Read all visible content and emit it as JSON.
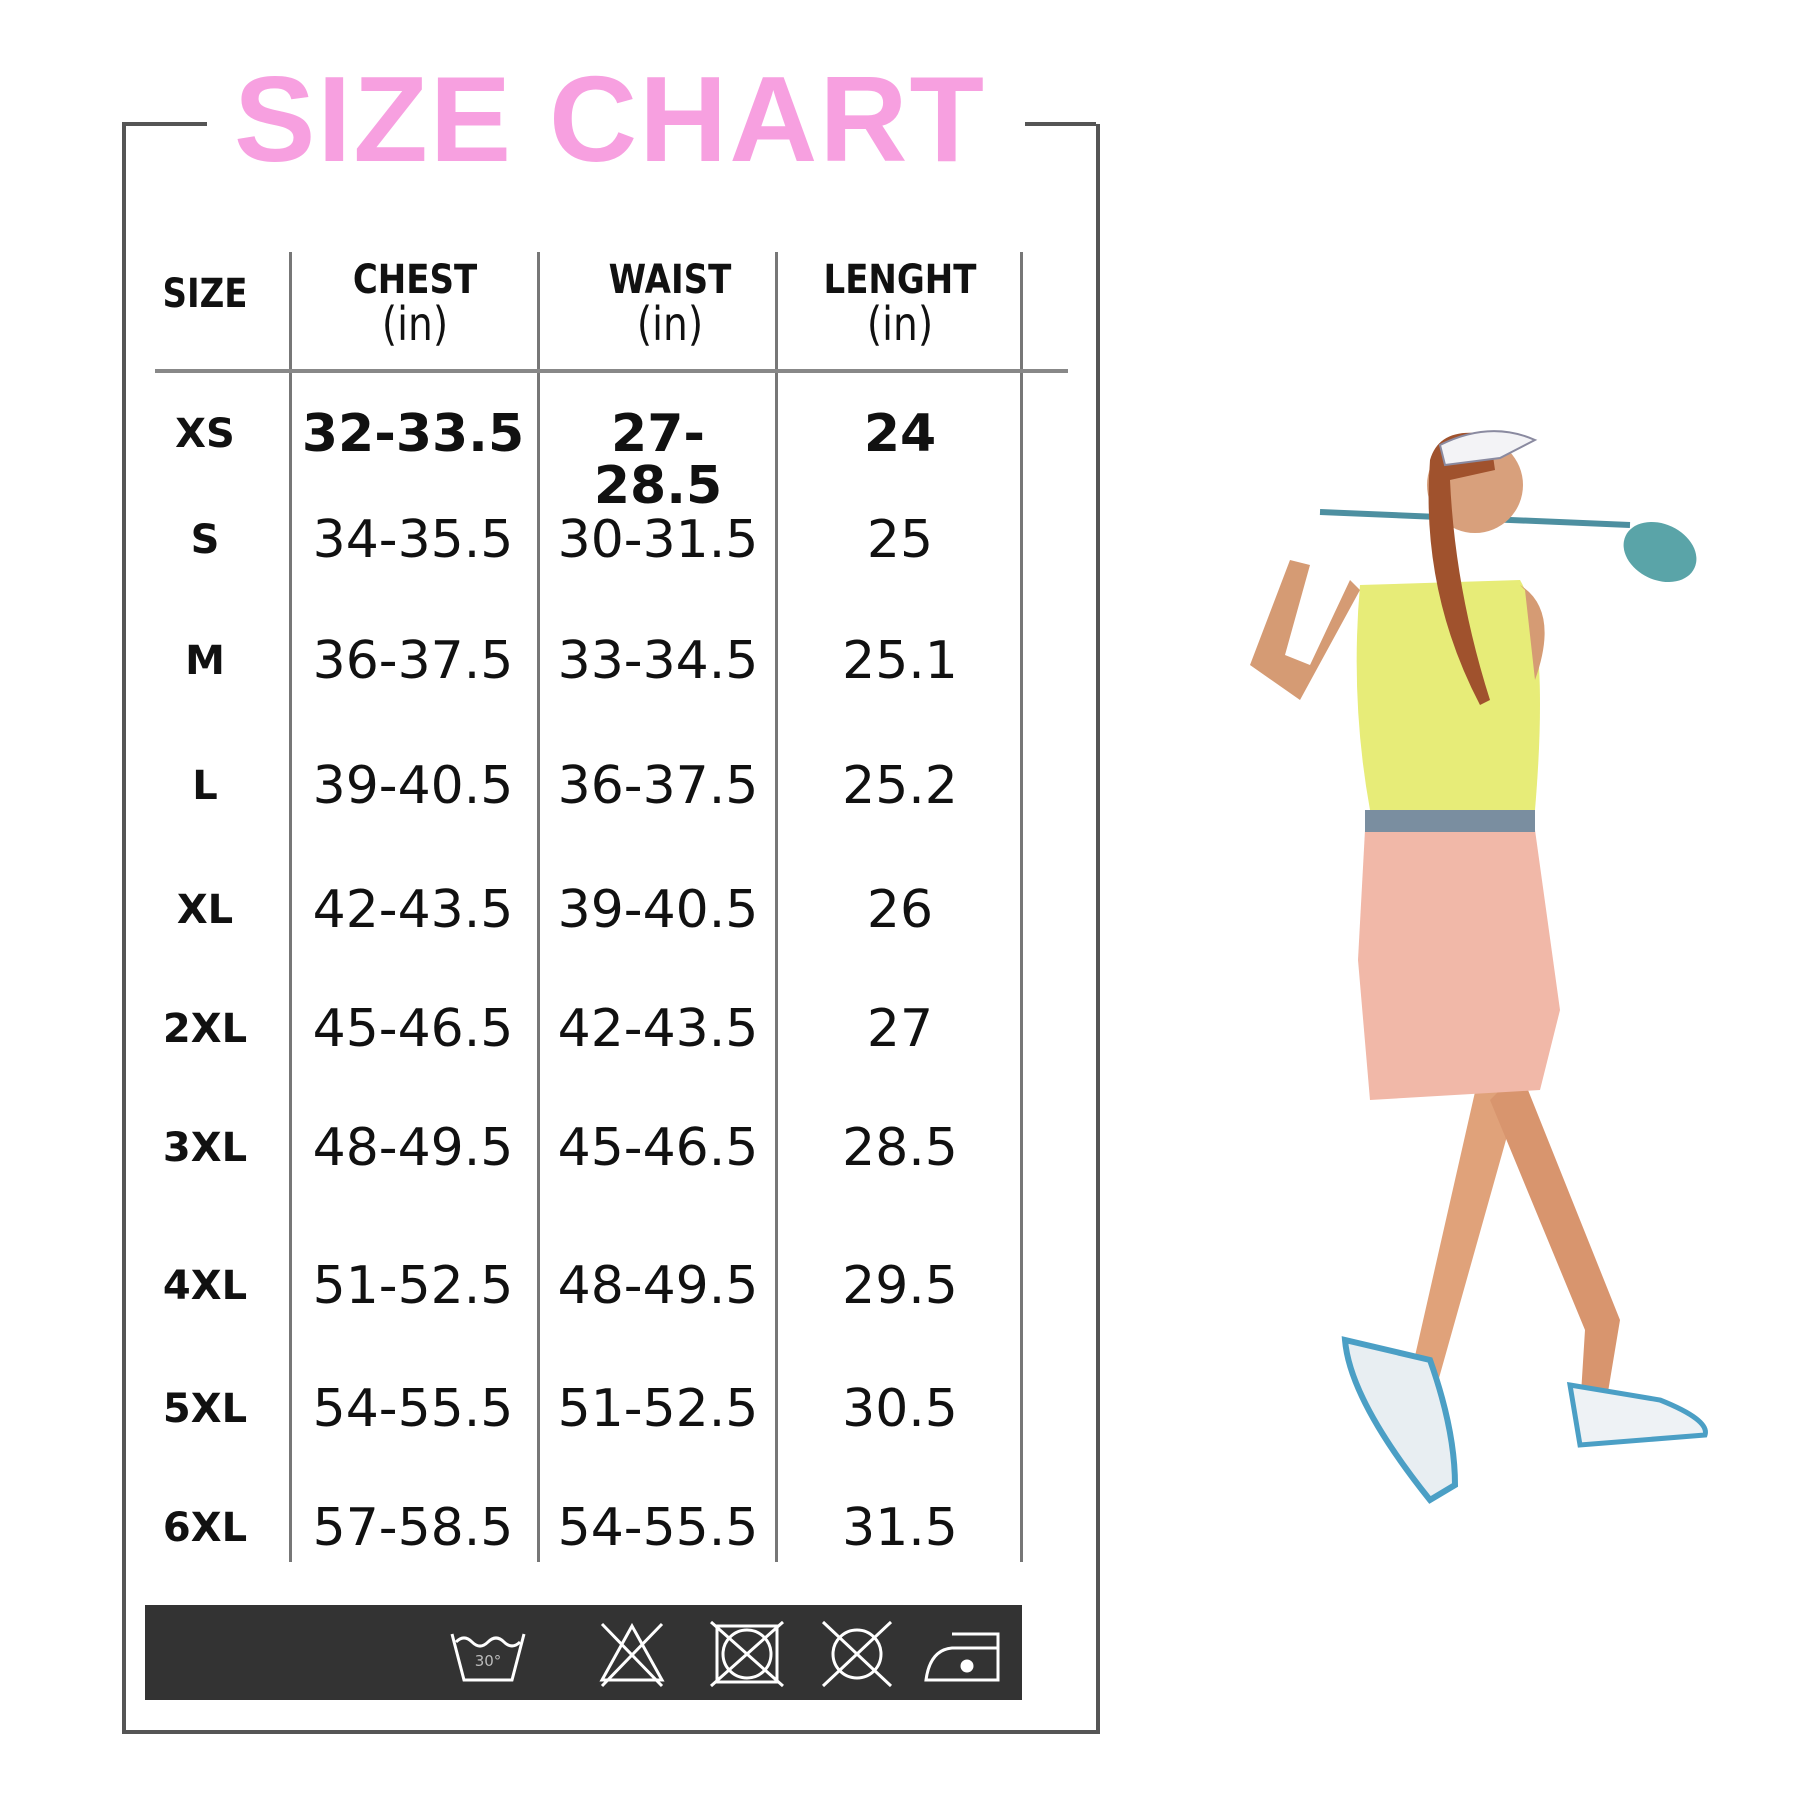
{
  "title": "SIZE CHART",
  "headers": [
    {
      "label": "SIZE",
      "unit": ""
    },
    {
      "label": "CHEST",
      "unit": "(in)"
    },
    {
      "label": "WAIST",
      "unit": "(in)"
    },
    {
      "label": "LENGHT",
      "unit": "(in)"
    }
  ],
  "rows": [
    {
      "size": "XS",
      "chest": "32-33.5",
      "waist": "27-28.5",
      "length": "24"
    },
    {
      "size": "S",
      "chest": "34-35.5",
      "waist": "30-31.5",
      "length": "25"
    },
    {
      "size": "M",
      "chest": "36-37.5",
      "waist": "33-34.5",
      "length": "25.1"
    },
    {
      "size": "L",
      "chest": "39-40.5",
      "waist": "36-37.5",
      "length": "25.2"
    },
    {
      "size": "XL",
      "chest": "42-43.5",
      "waist": "39-40.5",
      "length": "26"
    },
    {
      "size": "2XL",
      "chest": "45-46.5",
      "waist": "42-43.5",
      "length": "27"
    },
    {
      "size": "3XL",
      "chest": "48-49.5",
      "waist": "45-46.5",
      "length": "28.5"
    },
    {
      "size": "4XL",
      "chest": "51-52.5",
      "waist": "48-49.5",
      "length": "29.5"
    },
    {
      "size": "5XL",
      "chest": "54-55.5",
      "waist": "51-52.5",
      "length": "30.5"
    },
    {
      "size": "6XL",
      "chest": "57-58.5",
      "waist": "54-55.5",
      "length": "31.5"
    }
  ],
  "care_icons": [
    {
      "name": "wash-30-icon",
      "text": "30°"
    },
    {
      "name": "do-not-bleach-icon"
    },
    {
      "name": "do-not-tumble-dry-icon"
    },
    {
      "name": "do-not-dry-clean-icon"
    },
    {
      "name": "iron-low-icon"
    }
  ],
  "colors": {
    "title": "#f7a0e0",
    "care_bar": "#333333",
    "frame": "#555555"
  }
}
